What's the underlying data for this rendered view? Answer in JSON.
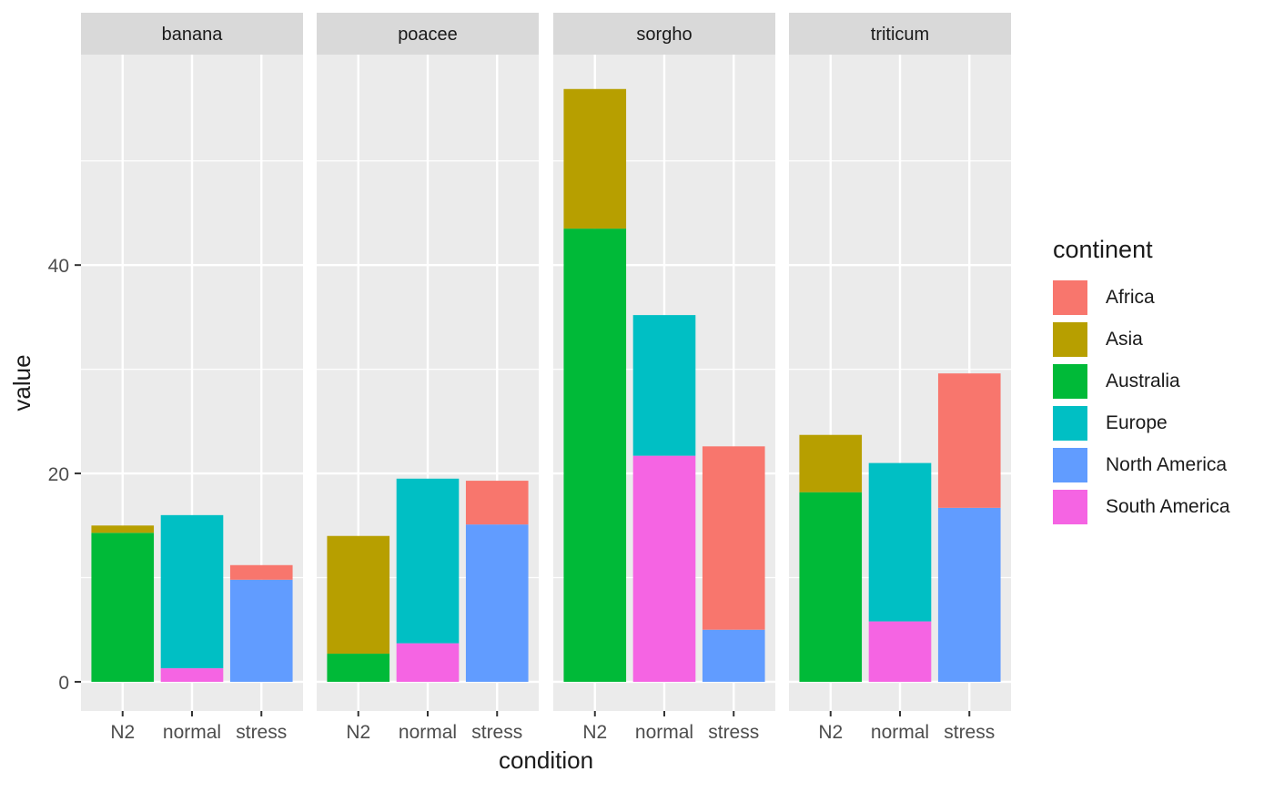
{
  "chart_data": {
    "type": "bar",
    "stacked": true,
    "facet_by": "variable",
    "xlabel": "condition",
    "ylabel": "value",
    "ylim": [
      -2.8,
      60.2
    ],
    "y_ticks": [
      0,
      20,
      40
    ],
    "grid": true,
    "legend_title": "continent",
    "legend_position": "right",
    "categories": [
      "N2",
      "normal",
      "stress"
    ],
    "series": [
      {
        "name": "Africa",
        "color": "#F8766D"
      },
      {
        "name": "Asia",
        "color": "#B79F00"
      },
      {
        "name": "Australia",
        "color": "#00BA38"
      },
      {
        "name": "Europe",
        "color": "#00BFC4"
      },
      {
        "name": "North America",
        "color": "#619CFF"
      },
      {
        "name": "South America",
        "color": "#F564E3"
      }
    ],
    "stack_order_top_to_bottom": [
      "Africa",
      "Asia",
      "Australia",
      "Europe",
      "North America",
      "South America"
    ],
    "panels": [
      {
        "title": "banana",
        "bars": [
          {
            "category": "N2",
            "values": {
              "Asia": 0.7,
              "Australia": 14.3
            }
          },
          {
            "category": "normal",
            "values": {
              "Europe": 14.7,
              "South America": 1.3
            }
          },
          {
            "category": "stress",
            "values": {
              "Africa": 1.4,
              "North America": 9.8
            }
          }
        ]
      },
      {
        "title": "poacee",
        "bars": [
          {
            "category": "N2",
            "values": {
              "Asia": 11.3,
              "Australia": 2.7
            }
          },
          {
            "category": "normal",
            "values": {
              "Europe": 15.8,
              "South America": 3.7
            }
          },
          {
            "category": "stress",
            "values": {
              "Africa": 4.2,
              "North America": 15.1
            }
          }
        ]
      },
      {
        "title": "sorgho",
        "bars": [
          {
            "category": "N2",
            "values": {
              "Asia": 13.4,
              "Australia": 43.5
            }
          },
          {
            "category": "normal",
            "values": {
              "Europe": 13.5,
              "South America": 21.7
            }
          },
          {
            "category": "stress",
            "values": {
              "Africa": 17.6,
              "North America": 5.0
            }
          }
        ]
      },
      {
        "title": "triticum",
        "bars": [
          {
            "category": "N2",
            "values": {
              "Asia": 5.5,
              "Australia": 18.2
            }
          },
          {
            "category": "normal",
            "values": {
              "Europe": 15.2,
              "South America": 5.8
            }
          },
          {
            "category": "stress",
            "values": {
              "Africa": 12.9,
              "North America": 16.7
            }
          }
        ]
      }
    ]
  }
}
